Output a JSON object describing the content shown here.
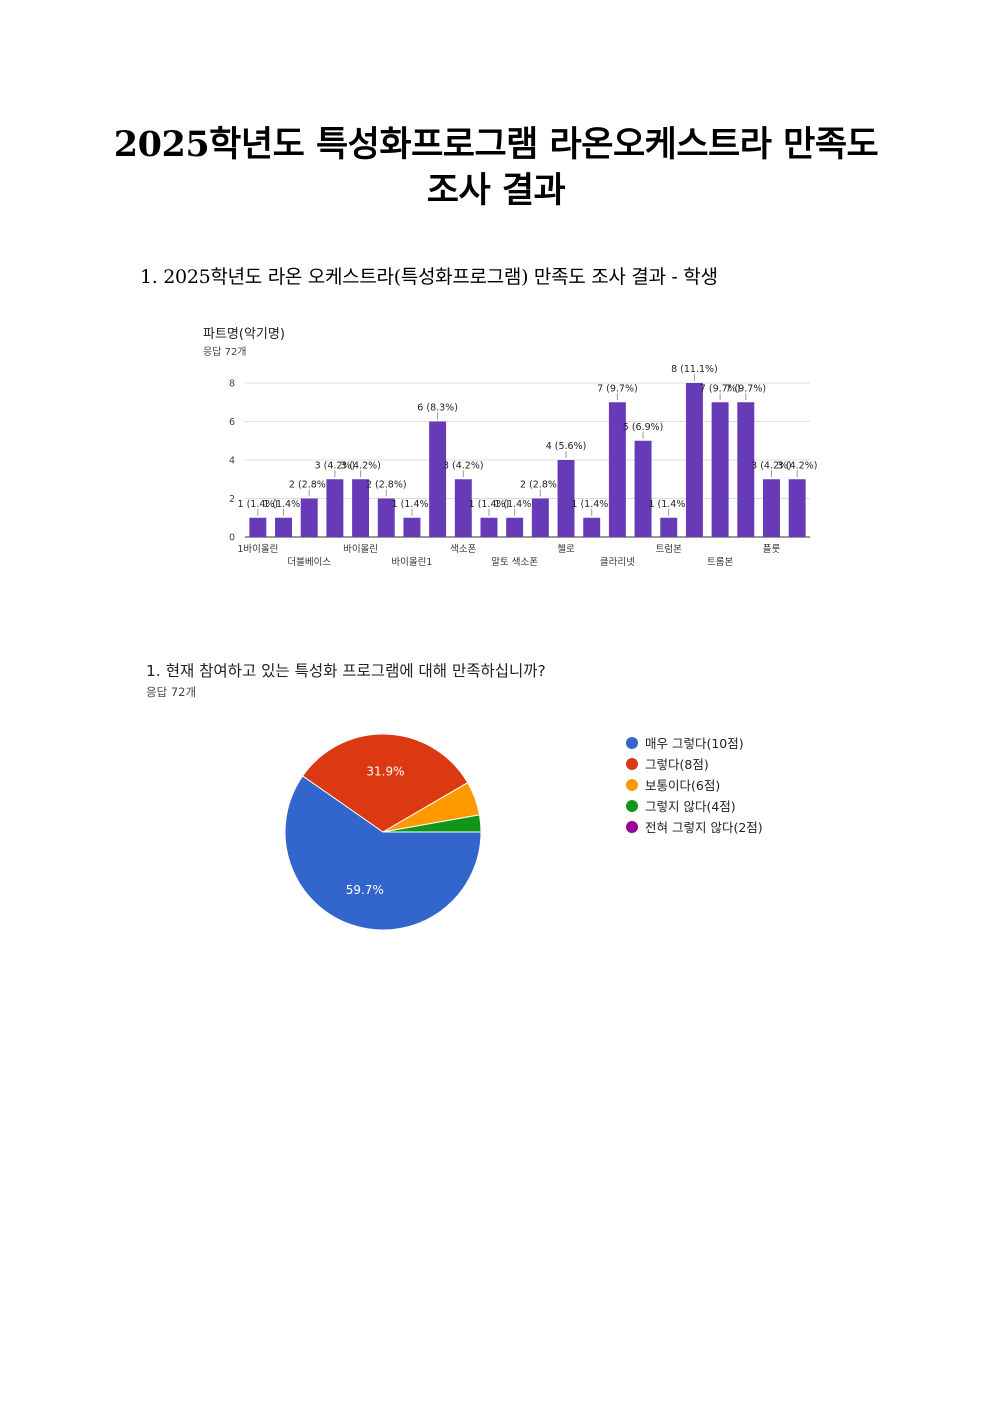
{
  "document": {
    "title_line1": "2025학년도 특성화프로그램 라온오케스트라 만족도",
    "title_line2": "조사 결과",
    "section_heading": "1. 2025학년도 라온 오케스트라(특성화프로그램) 만족도 조사 결과 - 학생"
  },
  "bar_block": {
    "title": "파트명(악기명)",
    "subtitle": "응답 72개"
  },
  "pie_block": {
    "title": "1. 현재 참여하고 있는 특성화 프로그램에 대해 만족하십니까?",
    "subtitle": "응답 72개"
  },
  "chart_data": [
    {
      "type": "bar",
      "title": "파트명(악기명)",
      "ylim": [
        0,
        8
      ],
      "yticks": [
        "0",
        "2",
        "4",
        "6",
        "8"
      ],
      "grid": true,
      "bar_color": "#673ab7",
      "values": [
        1,
        1,
        2,
        3,
        3,
        2,
        1,
        6,
        3,
        1,
        1,
        2,
        4,
        1,
        7,
        5,
        1,
        8,
        7,
        7,
        3,
        3
      ],
      "data_labels": [
        "1 (1.4%)",
        "1 (1.4%)",
        "2 (2.8%)",
        "3 (4.2%)",
        "3 (4.2%)",
        "2 (2.8%)",
        "1 (1.4%)",
        "6 (8.3%)",
        "3 (4.2%)",
        "1 (1.4%)",
        "1 (1.4%)",
        "2 (2.8%)",
        "4 (5.6%)",
        "1 (1.4%)",
        "7 (9.7%)",
        "5 (6.9%)",
        "1 (1.4%)",
        "8 (11.1%)",
        "7 (9.7%)",
        "7 (9.7%)",
        "3 (4.2%)",
        "3 (4.2%)"
      ],
      "visible_category_labels": [
        {
          "index": 0,
          "row": 0,
          "text": "1바이올린"
        },
        {
          "index": 2,
          "row": 1,
          "text": "더블베이스"
        },
        {
          "index": 4,
          "row": 0,
          "text": "바이올린"
        },
        {
          "index": 6,
          "row": 1,
          "text": "바이올린1"
        },
        {
          "index": 8,
          "row": 0,
          "text": "색소폰"
        },
        {
          "index": 10,
          "row": 1,
          "text": "알토 색소폰"
        },
        {
          "index": 12,
          "row": 0,
          "text": "첼로"
        },
        {
          "index": 14,
          "row": 1,
          "text": "클라리넷"
        },
        {
          "index": 16,
          "row": 0,
          "text": "트럼본"
        },
        {
          "index": 18,
          "row": 1,
          "text": "트롬본"
        },
        {
          "index": 20,
          "row": 0,
          "text": "플룻"
        }
      ]
    },
    {
      "type": "pie",
      "title": "1. 현재 참여하고 있는 특성화 프로그램에 대해 만족하십니까?",
      "legend_position": "right",
      "slices": [
        {
          "label": "매우 그렇다(10점)",
          "percent": 59.7,
          "color": "#3366cc",
          "pct_label": "59.7%"
        },
        {
          "label": "그렇다(8점)",
          "percent": 31.9,
          "color": "#dc3912",
          "pct_label": "31.9%"
        },
        {
          "label": "보통이다(6점)",
          "percent": 5.6,
          "color": "#ff9900",
          "pct_label": ""
        },
        {
          "label": "그렇지 않다(4점)",
          "percent": 2.8,
          "color": "#109618",
          "pct_label": ""
        },
        {
          "label": "전혀 그렇지 않다(2점)",
          "percent": 0,
          "color": "#990099",
          "pct_label": ""
        }
      ]
    }
  ]
}
